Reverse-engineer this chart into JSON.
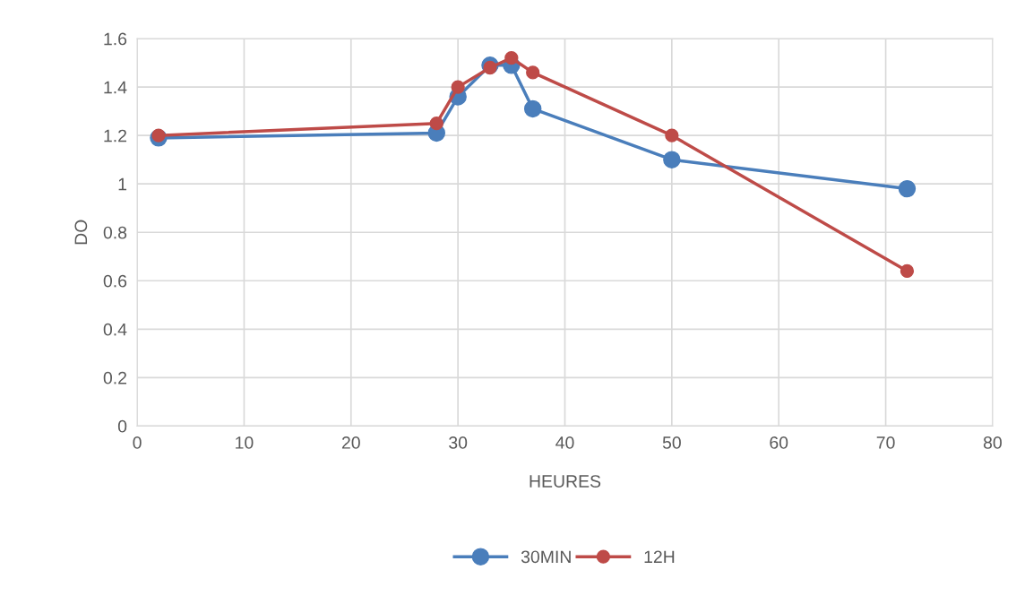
{
  "chart_data": {
    "type": "line",
    "xlabel": "HEURES",
    "ylabel": "DO",
    "x": [
      2,
      28,
      30,
      33,
      35,
      37,
      50,
      72
    ],
    "series": [
      {
        "name": "30MIN",
        "color": "#4a7ebb",
        "values": [
          1.19,
          1.21,
          1.36,
          1.49,
          1.49,
          1.31,
          1.1,
          0.98
        ]
      },
      {
        "name": "12H",
        "color": "#be4b48",
        "values": [
          1.2,
          1.25,
          1.4,
          1.48,
          1.52,
          1.46,
          1.2,
          0.64
        ]
      }
    ],
    "xlim": [
      0,
      80
    ],
    "xticks": [
      0,
      10,
      20,
      30,
      40,
      50,
      60,
      70,
      80
    ],
    "ylim": [
      0,
      1.6
    ],
    "yticks": [
      0,
      {
        "value": 0.2,
        "label": "0.2"
      },
      {
        "value": 0.4,
        "label": "0.4"
      },
      {
        "value": 0.6,
        "label": "0.6"
      },
      {
        "value": 0.8,
        "label": "0.8"
      },
      1,
      {
        "value": 1.2,
        "label": "1.2"
      },
      {
        "value": 1.4,
        "label": "1.4"
      },
      {
        "value": 1.6,
        "label": "1.6"
      }
    ],
    "grid": true,
    "legend": "bottom",
    "marker": "circle",
    "line_style": "solid"
  }
}
